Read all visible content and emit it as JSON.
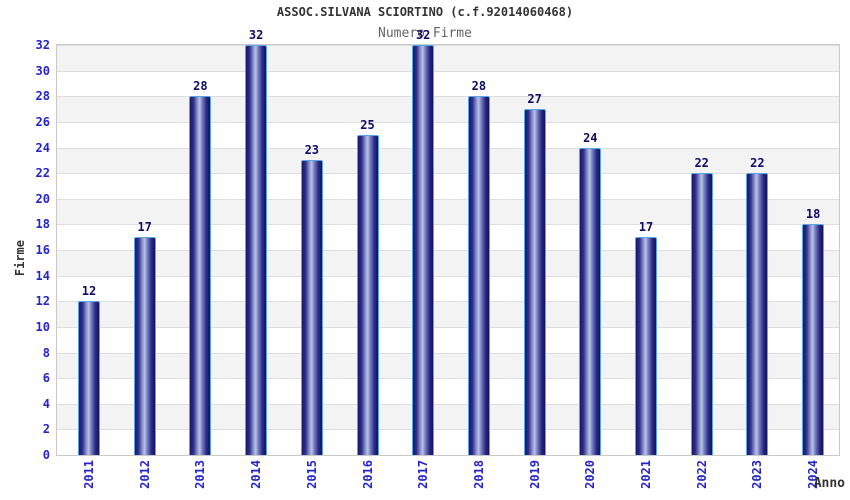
{
  "chart_data": {
    "type": "bar",
    "title": "ASSOC.SILVANA SCIORTINO (c.f.92014060468)",
    "subtitle": "Numero Firme",
    "xlabel": "Anno",
    "ylabel": "Firme",
    "categories": [
      "2011",
      "2012",
      "2013",
      "2014",
      "2015",
      "2016",
      "2017",
      "2018",
      "2019",
      "2020",
      "2021",
      "2022",
      "2023",
      "2024"
    ],
    "values": [
      12,
      17,
      28,
      32,
      23,
      25,
      32,
      28,
      27,
      24,
      17,
      22,
      22,
      18
    ],
    "yticks": [
      0,
      2,
      4,
      6,
      8,
      10,
      12,
      14,
      16,
      18,
      20,
      22,
      24,
      26,
      28,
      30,
      32
    ],
    "ylim": [
      0,
      32
    ],
    "grid": "horizontal alternating bands every 2 units",
    "legend_position": "none",
    "value_labels": "above each bar",
    "x_tick_rotation": "vertical (reads bottom to top)"
  },
  "colors": {
    "title_color": "#333333",
    "subtitle_color": "#666666",
    "tick_label": "#2424cc",
    "value_label": "#0d0d66",
    "bar_dark": "#17176c",
    "bar_light": "#bac2e6",
    "bar_border": "#58a6e8",
    "band_gray": "#f3f3f3",
    "band_white": "#ffffff",
    "grid_line": "#dedede",
    "plot_border": "#c9c9c9",
    "background": "#ffffff"
  }
}
